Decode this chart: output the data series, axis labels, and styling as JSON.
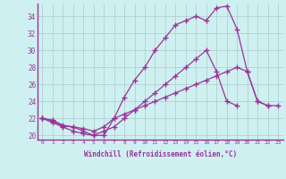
{
  "xlabel": "Windchill (Refroidissement éolien,°C)",
  "background_color": "#cff0f0",
  "grid_color": "#aacccc",
  "line_color": "#993399",
  "xlim": [
    -0.5,
    23.5
  ],
  "ylim": [
    19.5,
    35.5
  ],
  "yticks": [
    20,
    22,
    24,
    26,
    28,
    30,
    32,
    34
  ],
  "xticks": [
    0,
    1,
    2,
    3,
    4,
    5,
    6,
    7,
    8,
    9,
    10,
    11,
    12,
    13,
    14,
    15,
    16,
    17,
    18,
    19,
    20,
    21,
    22,
    23
  ],
  "series": [
    {
      "x": [
        0,
        1,
        2,
        3,
        4,
        5,
        6,
        7,
        8,
        9,
        10,
        11,
        12,
        13,
        14,
        15,
        16,
        17,
        18,
        19,
        20,
        21,
        22,
        23
      ],
      "y": [
        22.0,
        21.7,
        21.1,
        21.0,
        20.5,
        20.0,
        20.0,
        22.0,
        24.5,
        26.5,
        28.0,
        30.0,
        31.5,
        33.0,
        33.5,
        34.0,
        33.5,
        35.0,
        35.2,
        32.5,
        27.5,
        24.0,
        23.5,
        null
      ]
    },
    {
      "x": [
        0,
        1,
        2,
        3,
        4,
        5,
        6,
        7,
        8,
        9,
        10,
        11,
        12,
        13,
        14,
        15,
        16,
        17,
        18,
        19,
        20,
        21,
        22,
        23
      ],
      "y": [
        22.0,
        21.5,
        21.0,
        20.5,
        20.2,
        20.0,
        20.5,
        21.0,
        22.0,
        23.0,
        24.0,
        25.0,
        26.0,
        27.0,
        28.0,
        29.0,
        30.0,
        27.5,
        24.0,
        23.5,
        null,
        null,
        null,
        null
      ]
    },
    {
      "x": [
        0,
        1,
        2,
        3,
        4,
        5,
        6,
        7,
        8,
        9,
        10,
        11,
        12,
        13,
        14,
        15,
        16,
        17,
        18,
        19,
        20,
        21,
        22,
        23
      ],
      "y": [
        22.0,
        21.8,
        21.2,
        21.0,
        20.8,
        20.5,
        21.0,
        22.0,
        22.5,
        23.0,
        23.5,
        24.0,
        24.5,
        25.0,
        25.5,
        26.0,
        26.5,
        27.0,
        27.5,
        28.0,
        27.5,
        24.0,
        23.5,
        23.5
      ]
    }
  ]
}
